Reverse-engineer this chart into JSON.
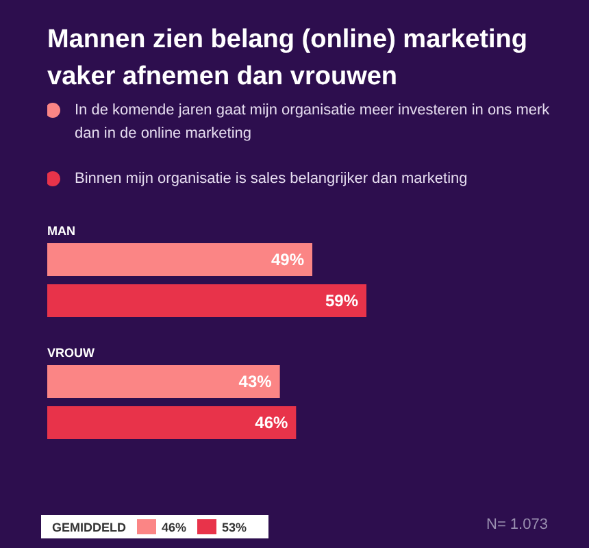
{
  "chart_data": {
    "type": "bar",
    "orientation": "horizontal",
    "title": "Mannen zien belang (online) marketing vaker afnemen dan vrouwen",
    "categories": [
      "MAN",
      "VROUW"
    ],
    "series": [
      {
        "name": "In de komende jaren gaat mijn organisatie meer investeren in ons merk dan in de online marketing",
        "color": "#fb8585",
        "values": [
          49,
          43
        ],
        "value_labels": [
          "49%",
          "43%"
        ]
      },
      {
        "name": "Binnen mijn organisatie is sales belangrijker dan marketing",
        "color": "#e8334a",
        "values": [
          59,
          46
        ],
        "value_labels": [
          "59%",
          "46%"
        ]
      }
    ],
    "legend": "top",
    "annotations": [
      "GEMIDDELD",
      "46%",
      "53%",
      "N= 1.073"
    ]
  }
}
